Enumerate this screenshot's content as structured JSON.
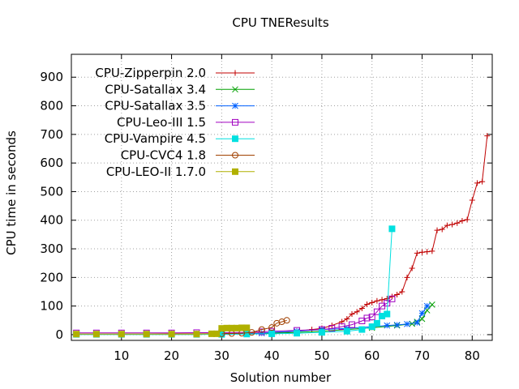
{
  "chart_data": {
    "type": "line",
    "title": "CPU TNEResults",
    "xlabel": "Solution number",
    "ylabel": "CPU time in seconds",
    "xlim": [
      0,
      84
    ],
    "ylim": [
      -20,
      980
    ],
    "xticks": [
      10,
      20,
      30,
      40,
      50,
      60,
      70,
      80
    ],
    "yticks": [
      0,
      100,
      200,
      300,
      400,
      500,
      600,
      700,
      800,
      900
    ],
    "grid": true,
    "legend_position": "top-left",
    "series": [
      {
        "name": "CPU-Zipperpin 2.0",
        "color": "#c00000",
        "marker": "plus",
        "x": [
          1,
          5,
          10,
          15,
          20,
          25,
          30,
          35,
          40,
          45,
          48,
          50,
          52,
          54,
          55,
          56,
          57,
          58,
          59,
          60,
          61,
          62,
          63,
          64,
          65,
          66,
          67,
          68,
          69,
          70,
          71,
          72,
          73,
          74,
          75,
          76,
          77,
          78,
          79,
          80,
          81,
          82,
          83
        ],
        "y": [
          2,
          2,
          2,
          2,
          3,
          3,
          4,
          5,
          7,
          12,
          18,
          22,
          32,
          45,
          55,
          72,
          80,
          92,
          106,
          112,
          118,
          122,
          126,
          133,
          140,
          150,
          200,
          232,
          285,
          288,
          290,
          292,
          365,
          368,
          382,
          385,
          390,
          398,
          402,
          470,
          530,
          535,
          695
        ]
      },
      {
        "name": "CPU-Satallax 3.4",
        "color": "#00a000",
        "marker": "x",
        "x": [
          1,
          5,
          10,
          15,
          20,
          25,
          30,
          35,
          40,
          45,
          50,
          55,
          60,
          65,
          68,
          69,
          70,
          71,
          72
        ],
        "y": [
          1,
          1,
          1,
          1,
          1,
          1,
          2,
          3,
          5,
          8,
          12,
          18,
          24,
          32,
          38,
          45,
          55,
          85,
          105
        ]
      },
      {
        "name": "CPU-Satallax 3.5",
        "color": "#0060ff",
        "marker": "star",
        "x": [
          1,
          5,
          10,
          15,
          20,
          25,
          30,
          35,
          38,
          40,
          45,
          50,
          55,
          60,
          63,
          65,
          67,
          69,
          70,
          71
        ],
        "y": [
          1,
          1,
          1,
          1,
          1,
          1,
          2,
          3,
          5,
          8,
          12,
          18,
          22,
          28,
          32,
          34,
          37,
          42,
          75,
          100
        ]
      },
      {
        "name": "CPU-Leo-III 1.5",
        "color": "#a000c0",
        "marker": "square",
        "x": [
          1,
          5,
          10,
          15,
          20,
          25,
          30,
          35,
          38,
          40,
          45,
          50,
          52,
          54,
          56,
          58,
          59,
          60,
          61,
          62,
          63,
          64
        ],
        "y": [
          6,
          6,
          6,
          6,
          6,
          7,
          7,
          8,
          10,
          12,
          15,
          18,
          22,
          28,
          35,
          48,
          58,
          62,
          80,
          100,
          110,
          125
        ]
      },
      {
        "name": "CPU-Vampire 4.5",
        "color": "#00e0e0",
        "marker": "filled-square",
        "x": [
          1,
          5,
          10,
          15,
          20,
          25,
          30,
          35,
          40,
          45,
          50,
          55,
          58,
          60,
          61,
          62,
          63,
          64
        ],
        "y": [
          1,
          1,
          1,
          1,
          1,
          1,
          1,
          2,
          3,
          5,
          8,
          12,
          18,
          28,
          40,
          65,
          72,
          370
        ]
      },
      {
        "name": "CPU-CVC4 1.8",
        "color": "#a04000",
        "marker": "circle",
        "x": [
          30,
          32,
          34,
          36,
          38,
          40,
          41,
          42,
          43
        ],
        "y": [
          3,
          4,
          5,
          8,
          18,
          25,
          40,
          45,
          50
        ]
      },
      {
        "name": "CPU-LEO-II 1.7.0",
        "color": "#b0b000",
        "marker": "filled-square",
        "x": [
          1,
          5,
          10,
          15,
          20,
          25,
          28,
          29,
          30,
          31,
          32,
          33,
          34,
          35
        ],
        "y": [
          2,
          2,
          2,
          2,
          2,
          2,
          3,
          3,
          22,
          23,
          23,
          23,
          24,
          24
        ]
      }
    ]
  }
}
